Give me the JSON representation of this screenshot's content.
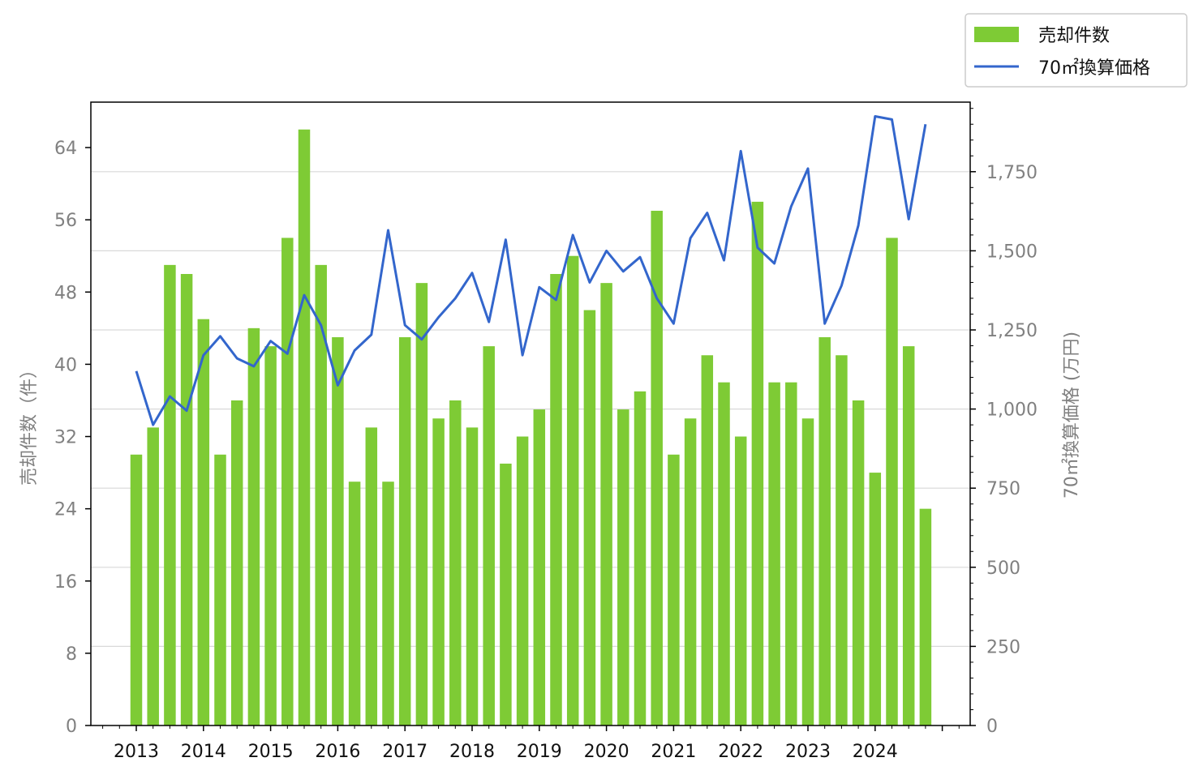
{
  "chart_data": {
    "type": "bar",
    "legend_position": "top-right",
    "grid": "horizontal",
    "years": [
      "2013",
      "2014",
      "2015",
      "2016",
      "2017",
      "2018",
      "2019",
      "2020",
      "2021",
      "2022",
      "2023",
      "2024"
    ],
    "y_left": {
      "label": "売却件数（件）",
      "ticks": [
        "0",
        "8",
        "16",
        "24",
        "32",
        "40",
        "48",
        "56",
        "64"
      ],
      "range": [
        0,
        69
      ]
    },
    "y_right": {
      "label": "70㎡換算価格 (万円)",
      "ticks": [
        "0",
        "250",
        "500",
        "750",
        "1,000",
        "1,250",
        "1,500",
        "1,750"
      ],
      "range": [
        0,
        1970
      ]
    },
    "series": [
      {
        "name": "売却件数",
        "type": "bar",
        "axis": "left",
        "color": "#7ecb35",
        "values": [
          30,
          33,
          51,
          50,
          45,
          30,
          36,
          44,
          42,
          54,
          66,
          51,
          43,
          27,
          33,
          27,
          43,
          49,
          34,
          36,
          33,
          42,
          29,
          32,
          35,
          50,
          52,
          46,
          49,
          35,
          37,
          57,
          30,
          34,
          41,
          38,
          32,
          58,
          38,
          38,
          34,
          43,
          41,
          36,
          28,
          54,
          42,
          24
        ]
      },
      {
        "name": "70㎡換算価格",
        "type": "line",
        "axis": "right",
        "color": "#3366cc",
        "values": [
          1120,
          950,
          1040,
          995,
          1170,
          1230,
          1160,
          1135,
          1215,
          1175,
          1360,
          1265,
          1075,
          1185,
          1235,
          1565,
          1265,
          1220,
          1290,
          1350,
          1430,
          1275,
          1535,
          1170,
          1385,
          1345,
          1550,
          1400,
          1500,
          1435,
          1480,
          1350,
          1270,
          1540,
          1620,
          1470,
          1815,
          1510,
          1460,
          1640,
          1760,
          1270,
          1390,
          1580,
          1925,
          1915,
          1600,
          1900
        ]
      }
    ]
  }
}
